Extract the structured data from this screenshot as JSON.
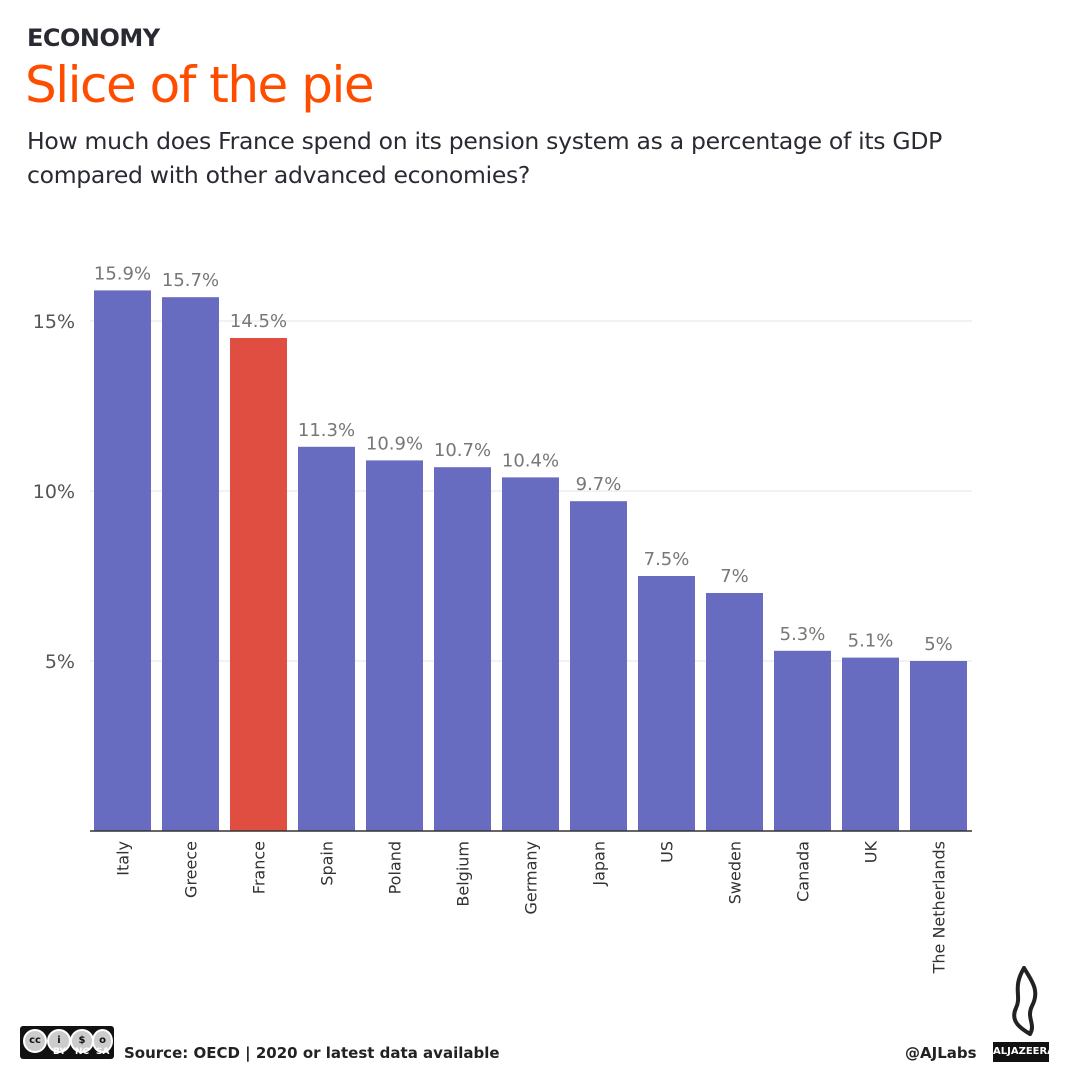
{
  "header": {
    "kicker": "ECONOMY",
    "title": "Slice of the pie",
    "subtitle": "How much does France spend on its pension system as a percentage of its GDP compared with other advanced economies?"
  },
  "chart_data": {
    "type": "bar",
    "categories": [
      "Italy",
      "Greece",
      "France",
      "Spain",
      "Poland",
      "Belgium",
      "Germany",
      "Japan",
      "US",
      "Sweden",
      "Canada",
      "UK",
      "The Netherlands"
    ],
    "values": [
      15.9,
      15.7,
      14.5,
      11.3,
      10.9,
      10.7,
      10.4,
      9.7,
      7.5,
      7,
      5.3,
      5.1,
      5
    ],
    "data_labels": [
      "15.9%",
      "15.7%",
      "14.5%",
      "11.3%",
      "10.9%",
      "10.7%",
      "10.4%",
      "9.7%",
      "7.5%",
      "7%",
      "5.3%",
      "5.1%",
      "5%"
    ],
    "yticks": [
      5,
      10,
      15
    ],
    "ytick_labels": [
      "5%",
      "10%",
      "15%"
    ],
    "ylim": [
      0,
      17
    ],
    "grid": true,
    "colors": {
      "default": "#676cc0",
      "highlight": "#df4e41"
    },
    "highlight": "France"
  },
  "footer": {
    "source": "Source: OECD | 2020 or latest data available",
    "handle": "@AJLabs",
    "logo_text": "ALJAZEERA",
    "license": [
      "BY",
      "NC",
      "SA"
    ],
    "license_icons": [
      "cc",
      "i",
      "$",
      "o"
    ]
  }
}
